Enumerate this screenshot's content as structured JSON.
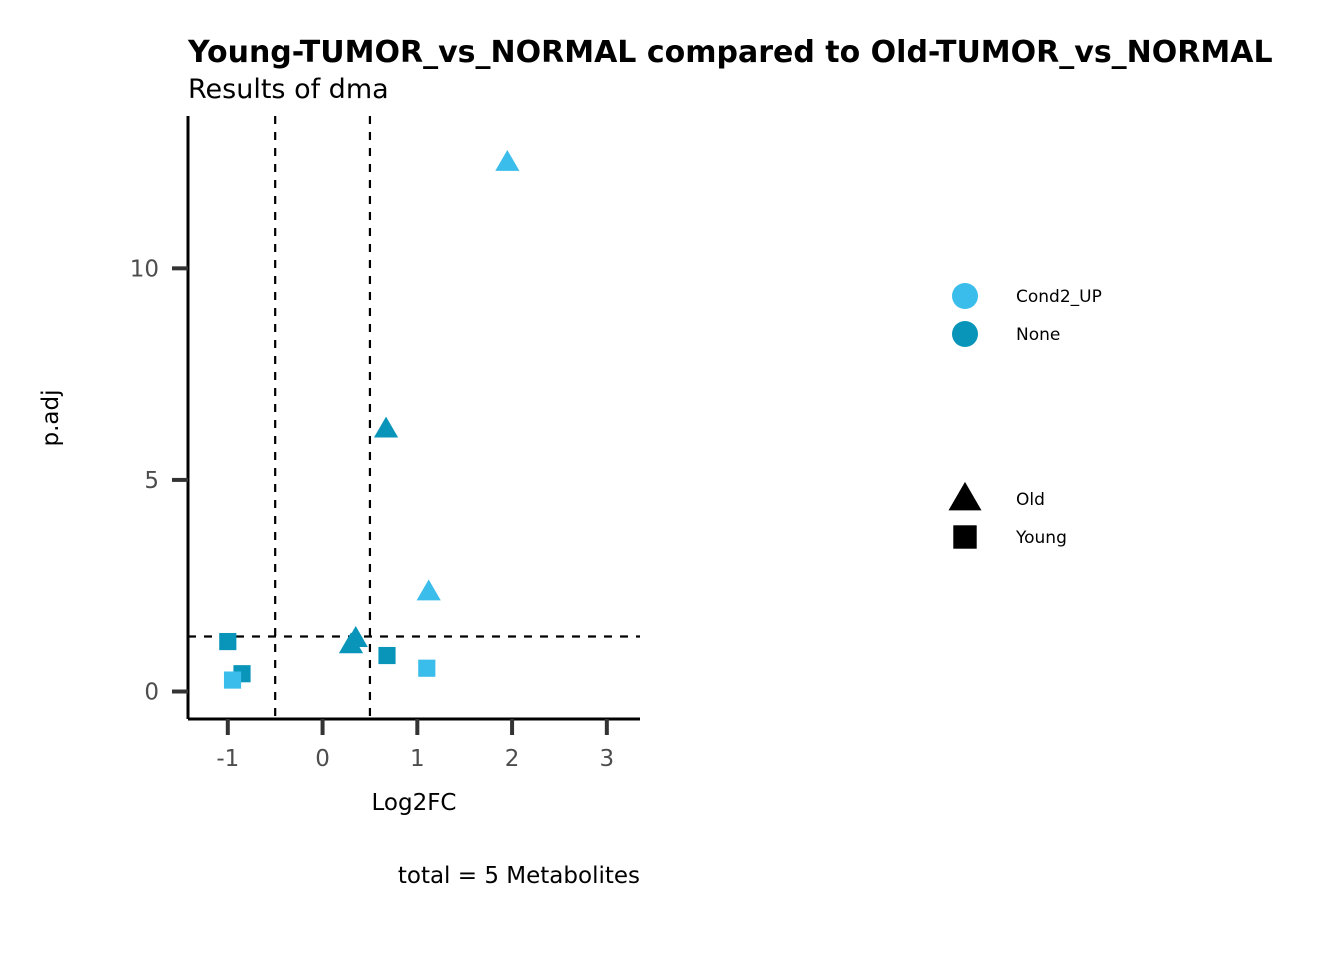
{
  "chart_data": {
    "type": "scatter",
    "title": "Young-TUMOR_vs_NORMAL compared to Old-TUMOR_vs_NORMAL",
    "subtitle": "Results of dma",
    "xlabel": "Log2FC",
    "ylabel": "p.adj",
    "caption": "total = 5 Metabolites",
    "xlim": [
      -1.42,
      3.35
    ],
    "ylim": [
      -0.65,
      13.6
    ],
    "x_ticks": [
      -1,
      0,
      1,
      2,
      3
    ],
    "x_tick_labels": [
      "-1",
      "0",
      "1",
      "2",
      "3"
    ],
    "y_ticks": [
      0,
      5,
      10
    ],
    "y_tick_labels": [
      "0",
      "5",
      "10"
    ],
    "thresholds": {
      "x": [
        -0.5,
        0.5
      ],
      "y": 1.3
    },
    "grid": false,
    "legend_placement": "right",
    "color_legend": [
      {
        "label": "Cond2_UP",
        "color": "#3bbdec"
      },
      {
        "label": "None",
        "color": "#0895b9"
      }
    ],
    "shape_legend": [
      {
        "label": "Old",
        "shape": "triangle"
      },
      {
        "label": "Young",
        "shape": "square"
      }
    ],
    "points": [
      {
        "x": 1.95,
        "y": 12.5,
        "group": "Cond2_UP",
        "shape": "triangle"
      },
      {
        "x": 0.67,
        "y": 6.2,
        "group": "None",
        "shape": "triangle"
      },
      {
        "x": 1.12,
        "y": 2.35,
        "group": "Cond2_UP",
        "shape": "triangle"
      },
      {
        "x": 0.35,
        "y": 1.25,
        "group": "None",
        "shape": "triangle"
      },
      {
        "x": 0.3,
        "y": 1.1,
        "group": "None",
        "shape": "triangle"
      },
      {
        "x": -1.0,
        "y": 1.18,
        "group": "None",
        "shape": "square"
      },
      {
        "x": -0.85,
        "y": 0.42,
        "group": "None",
        "shape": "square"
      },
      {
        "x": -0.95,
        "y": 0.27,
        "group": "Cond2_UP",
        "shape": "square"
      },
      {
        "x": 0.68,
        "y": 0.85,
        "group": "None",
        "shape": "square"
      },
      {
        "x": 1.1,
        "y": 0.55,
        "group": "Cond2_UP",
        "shape": "square"
      }
    ]
  }
}
